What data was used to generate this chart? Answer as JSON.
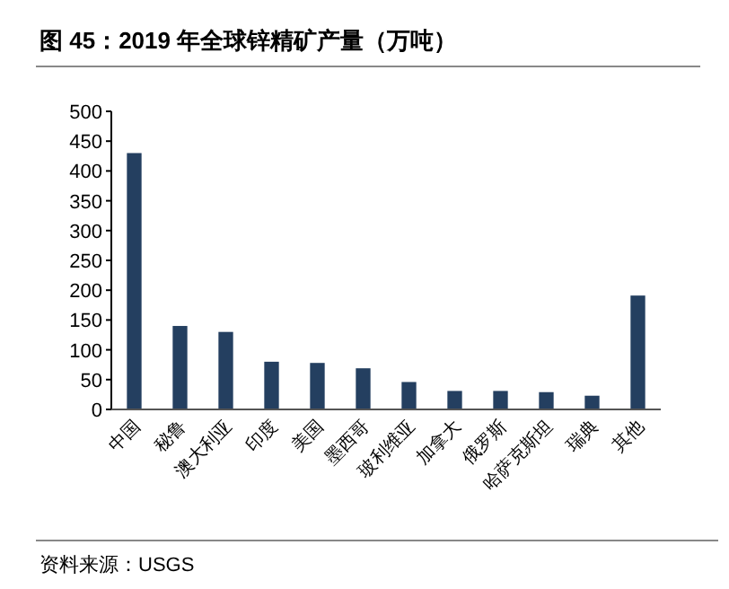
{
  "chart_data": {
    "type": "bar",
    "title": "图 45：2019 年全球锌精矿产量（万吨）",
    "categories": [
      "中国",
      "秘鲁",
      "澳大利亚",
      "印度",
      "美国",
      "墨西哥",
      "玻利维亚",
      "加拿大",
      "俄罗斯",
      "哈萨克斯坦",
      "瑞典",
      "其他"
    ],
    "values": [
      430,
      140,
      130,
      80,
      78,
      69,
      46,
      31,
      31,
      29,
      23,
      191
    ],
    "color": "#243f60",
    "ylim": [
      0,
      500
    ],
    "yticks": [
      0,
      50,
      100,
      150,
      200,
      250,
      300,
      350,
      400,
      450,
      500
    ],
    "annotations": [
      "资料来源：USGS"
    ]
  }
}
